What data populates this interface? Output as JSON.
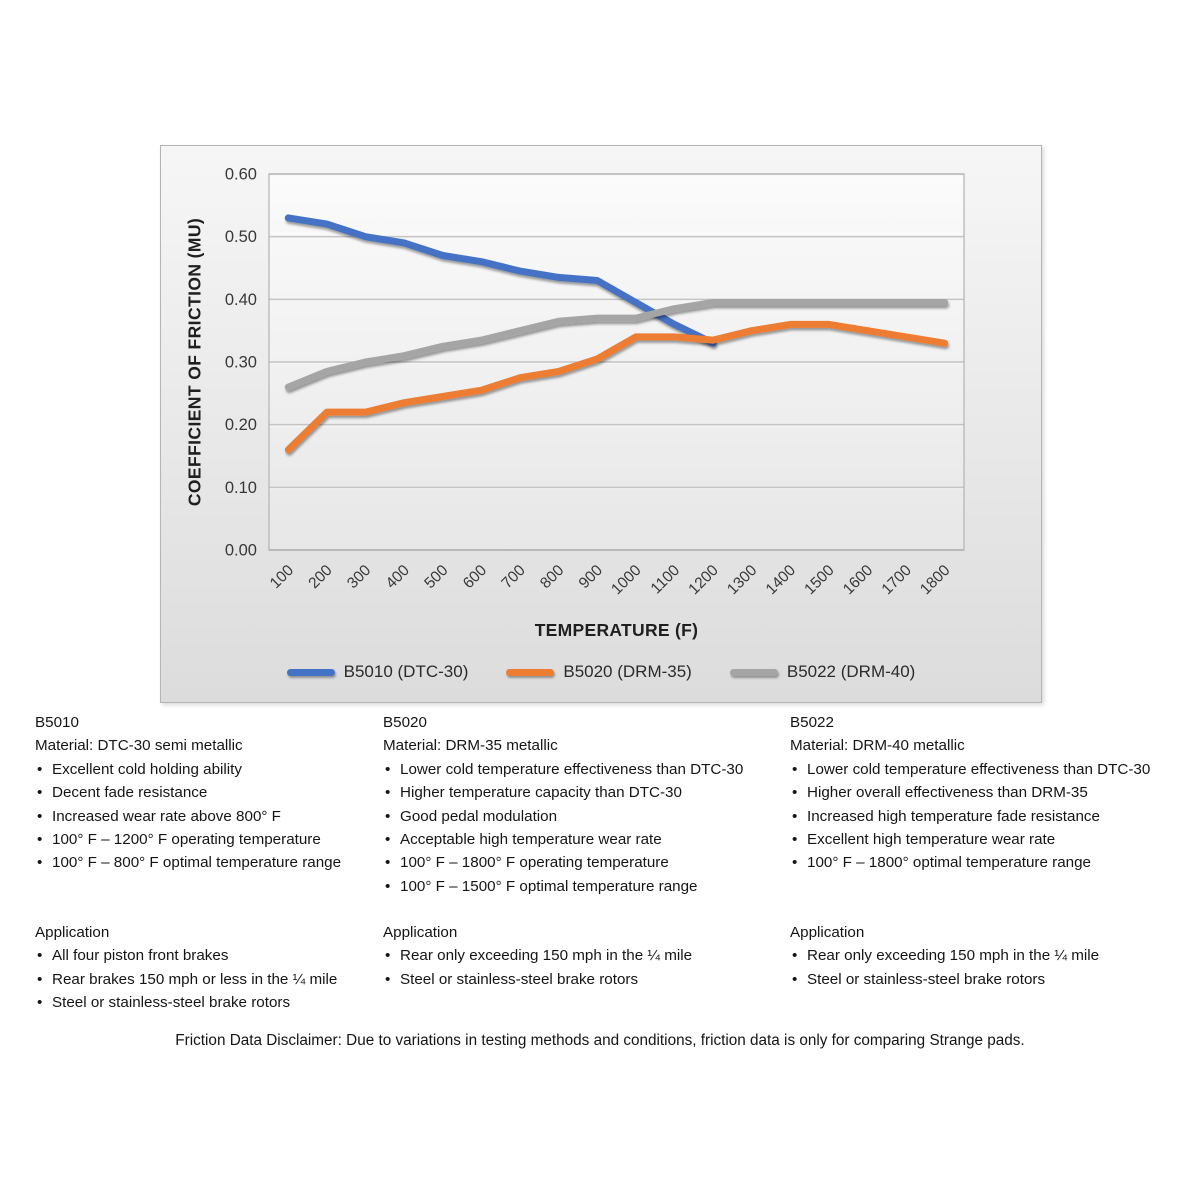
{
  "chart_data": {
    "type": "line",
    "title": "",
    "xlabel": "TEMPERATURE (F)",
    "ylabel": "COEFFICIENT OF FRICTION (MU)",
    "categories": [
      "100",
      "200",
      "300",
      "400",
      "500",
      "600",
      "700",
      "800",
      "900",
      "1000",
      "1100",
      "1200",
      "1300",
      "1400",
      "1500",
      "1600",
      "1700",
      "1800"
    ],
    "series": [
      {
        "name": "B5010 (DTC-30)",
        "color": "#4472C4",
        "values": [
          0.53,
          0.52,
          0.5,
          0.49,
          0.47,
          0.46,
          0.445,
          0.435,
          0.43,
          0.395,
          0.36,
          0.33,
          null,
          null,
          null,
          null,
          null,
          null
        ]
      },
      {
        "name": "B5020 (DRM-35)",
        "color": "#ED7D31",
        "values": [
          0.16,
          0.22,
          0.22,
          0.235,
          0.245,
          0.255,
          0.275,
          0.285,
          0.305,
          0.34,
          0.34,
          0.335,
          0.35,
          0.36,
          0.36,
          0.35,
          0.34,
          0.33
        ]
      },
      {
        "name": "B5022 (DRM-40)",
        "color": "#A5A5A5",
        "values": [
          0.26,
          0.285,
          0.3,
          0.31,
          0.325,
          0.335,
          0.35,
          0.365,
          0.37,
          0.37,
          0.385,
          0.395,
          0.395,
          0.395,
          0.395,
          0.395,
          0.395,
          0.395
        ]
      }
    ],
    "ylim": [
      0,
      0.6
    ],
    "y_ticks": [
      {
        "value": 0.0,
        "label": "0.00"
      },
      {
        "value": 0.1,
        "label": "0.10"
      },
      {
        "value": 0.2,
        "label": "0.20"
      },
      {
        "value": 0.3,
        "label": "0.30"
      },
      {
        "value": 0.4,
        "label": "0.40"
      },
      {
        "value": 0.5,
        "label": "0.50"
      },
      {
        "value": 0.6,
        "label": "0.60"
      }
    ],
    "grid": true,
    "legend_position": "bottom"
  },
  "columns": [
    {
      "heading": "B5010",
      "material": "Material: DTC-30 semi metallic",
      "bullets": [
        "Excellent cold holding ability",
        "Decent fade resistance",
        "Increased wear rate above 800° F",
        "100° F – 1200° F operating temperature",
        "100° F – 800° F optimal temperature range"
      ],
      "application": {
        "heading": "Application",
        "bullets": [
          "All four piston front brakes",
          "Rear brakes 150 mph or less in the ¼ mile",
          "Steel or stainless-steel brake rotors"
        ]
      }
    },
    {
      "heading": "B5020",
      "material": "Material: DRM-35 metallic",
      "bullets": [
        "Lower cold temperature effectiveness than DTC-30",
        "Higher temperature capacity than DTC-30",
        "Good pedal modulation",
        "Acceptable high temperature wear rate",
        "100° F – 1800° F operating temperature",
        "100° F – 1500° F optimal temperature range"
      ],
      "application": {
        "heading": "Application",
        "bullets": [
          "Rear only exceeding 150 mph in the ¼ mile",
          "Steel or stainless-steel brake rotors"
        ]
      }
    },
    {
      "heading": "B5022",
      "material": "Material: DRM-40 metallic",
      "bullets": [
        "Lower cold temperature effectiveness than DTC-30",
        "Higher overall effectiveness than DRM-35",
        "Increased high temperature fade resistance",
        "Excellent high temperature wear rate",
        "100° F – 1800° optimal temperature range"
      ],
      "application": {
        "heading": "Application",
        "bullets": [
          "Rear only exceeding 150 mph in the ¼ mile",
          "Steel or stainless-steel brake rotors"
        ]
      }
    }
  ],
  "disclaimer": "Friction Data Disclaimer:  Due to variations in testing methods and conditions, friction data is only for comparing Strange pads."
}
